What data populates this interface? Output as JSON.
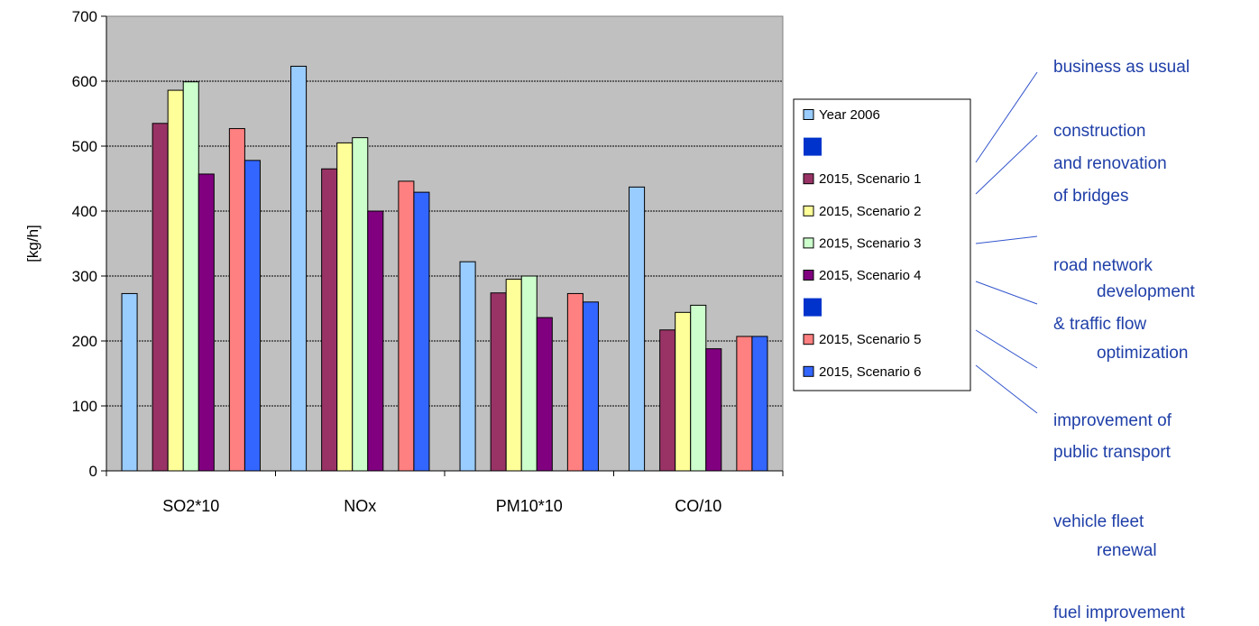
{
  "chart_data": {
    "type": "bar",
    "categories": [
      "SO2*10",
      "NOx",
      "PM10*10",
      "CO/10"
    ],
    "ylabel": "[kg/h]",
    "ylim": [
      0,
      700
    ],
    "yticks": [
      "0",
      "100",
      "200",
      "300",
      "400",
      "500",
      "600",
      "700"
    ],
    "grid": true,
    "legend_placement": "right",
    "series": [
      {
        "name": "Year 2006",
        "color": "#99ccff",
        "values": [
          273,
          623,
          322,
          437
        ]
      },
      {
        "name": "",
        "color": "#0033cc",
        "values": [
          null,
          null,
          null,
          null
        ]
      },
      {
        "name": "2015, Scenario 1",
        "color": "#993366",
        "values": [
          535,
          465,
          274,
          217
        ]
      },
      {
        "name": "2015, Scenario 2",
        "color": "#ffff99",
        "values": [
          586,
          505,
          295,
          244
        ]
      },
      {
        "name": "2015, Scenario 3",
        "color": "#ccffcc",
        "values": [
          599,
          513,
          300,
          255
        ]
      },
      {
        "name": "2015, Scenario 4",
        "color": "#800080",
        "values": [
          457,
          400,
          236,
          188
        ]
      },
      {
        "name": "",
        "color": "#0033cc",
        "values": [
          null,
          null,
          null,
          null
        ]
      },
      {
        "name": "2015, Scenario 5",
        "color": "#ff8080",
        "values": [
          527,
          446,
          273,
          207
        ]
      },
      {
        "name": "2015, Scenario 6",
        "color": "#3366ff",
        "values": [
          478,
          429,
          260,
          207
        ]
      }
    ]
  },
  "annotations": {
    "a1": "business as usual",
    "a2": "construction",
    "a3": "and renovation",
    "a4": "of bridges",
    "a5": "road network",
    "a6": "development",
    "a7": "& traffic flow",
    "a8": "optimization",
    "a9": "improvement of",
    "a10": "public transport",
    "a11": "vehicle fleet",
    "a12": "renewal",
    "a13": "fuel improvement"
  }
}
